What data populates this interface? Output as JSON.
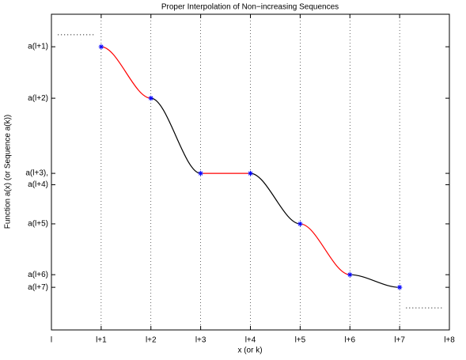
{
  "chart_data": {
    "type": "line",
    "title": "Proper Interpolation of Non−increasing Sequences",
    "x_label": "x (or k)",
    "y_label": "Function a(x)  (or Sequence a(k))",
    "xlim": [
      0,
      8
    ],
    "xticks": [
      {
        "value": 0,
        "label": "l"
      },
      {
        "value": 1,
        "label": "l+1"
      },
      {
        "value": 2,
        "label": "l+2"
      },
      {
        "value": 3,
        "label": "l+3"
      },
      {
        "value": 4,
        "label": "l+4"
      },
      {
        "value": 5,
        "label": "l+5"
      },
      {
        "value": 6,
        "label": "l+6"
      },
      {
        "value": 7,
        "label": "l+7"
      },
      {
        "value": 8,
        "label": "l+8"
      }
    ],
    "ylim": [
      0,
      100
    ],
    "yticks": [
      {
        "value": 13.5,
        "label": "a(l+7)"
      },
      {
        "value": 17.5,
        "label": "a(l+6)"
      },
      {
        "value": 33.6,
        "label": "a(l+5)"
      },
      {
        "value": 46,
        "label": "a(l+4)"
      },
      {
        "value": 49.6,
        "label": "a(l+3),"
      },
      {
        "value": 73.4,
        "label": "a(l+2)"
      },
      {
        "value": 89.7,
        "label": "a(l+1)"
      }
    ],
    "grid": true,
    "series": [
      {
        "x": [
          1,
          2,
          3,
          4,
          5,
          6,
          7
        ],
        "values": [
          89.7,
          73.4,
          49.6,
          49.6,
          33.6,
          17.5,
          13.5
        ],
        "color": "#0000ff",
        "segment_colors": [
          "#ff0000",
          "#000000",
          "#ff0000",
          "#000000",
          "#ff0000",
          "#000000"
        ]
      }
    ],
    "extensions": [
      {
        "x": [
          0.13,
          0.87
        ],
        "values": [
          93.5,
          93.5
        ]
      },
      {
        "x": [
          7.13,
          7.87
        ],
        "values": [
          7,
          7
        ]
      }
    ]
  }
}
